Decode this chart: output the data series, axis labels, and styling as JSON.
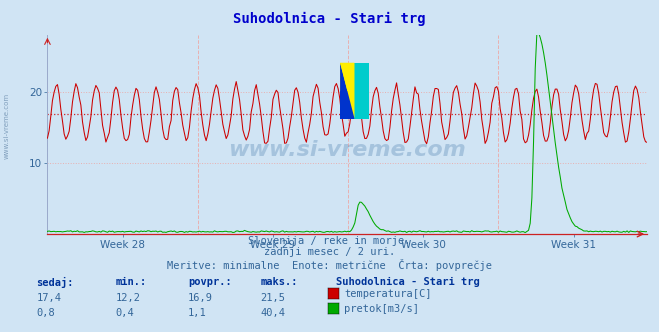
{
  "title": "Suhodolnica - Stari trg",
  "title_color": "#0000cc",
  "bg_color": "#d0e4f4",
  "plot_bg_color": "#d0e4f4",
  "grid_h_color": "#e8b0b0",
  "grid_v_color": "#e8b0b0",
  "x_labels": [
    "Week 28",
    "Week 29",
    "Week 30",
    "Week 31"
  ],
  "x_label_color": "#336699",
  "y_ticks": [
    10,
    20
  ],
  "y_tick_color": "#336699",
  "temp_color": "#cc0000",
  "flow_color": "#00aa00",
  "avg_line_color": "#cc0000",
  "avg_temp": 16.9,
  "temp_min": 12.2,
  "temp_max": 21.5,
  "flow_min": 0.4,
  "flow_max": 40.4,
  "flow_avg": 1.1,
  "subtitle1": "Slovenija / reke in morje.",
  "subtitle2": "zadnji mesec / 2 uri.",
  "subtitle3": "Meritve: minimalne  Enote: metrične  Črta: povprečje",
  "subtitle_color": "#336699",
  "table_header_color": "#003399",
  "table_value_color": "#336699",
  "watermark": "www.si-vreme.com",
  "watermark_color": "#4477aa",
  "n_points": 360,
  "ylim_max": 28,
  "flow_scale": 0.67
}
